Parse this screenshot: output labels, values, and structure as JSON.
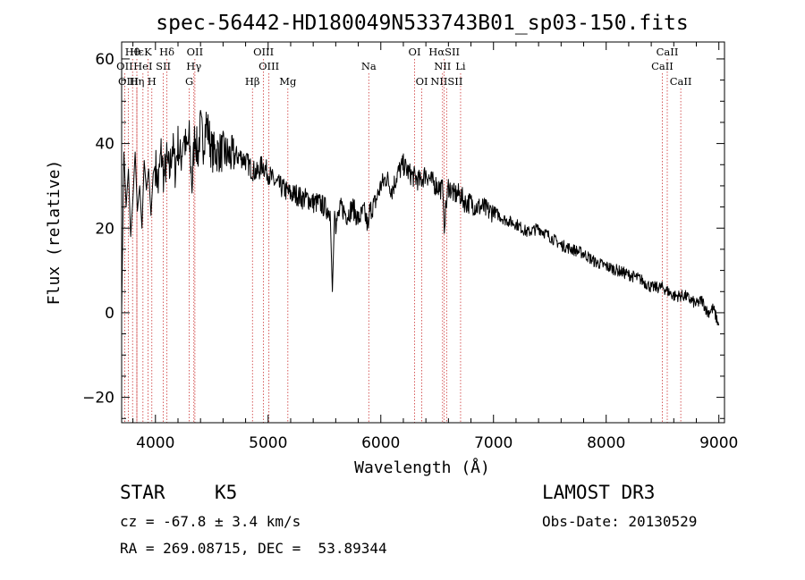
{
  "chart_data": {
    "type": "line",
    "title": "spec-56442-HD180049N533743B01_sp03-150.fits",
    "xlabel": "Wavelength (Å)",
    "ylabel": "Flux (relative)",
    "xlim": [
      3700,
      9050
    ],
    "ylim": [
      -26,
      64
    ],
    "xticks": [
      4000,
      5000,
      6000,
      7000,
      8000,
      9000
    ],
    "yticks": [
      -20,
      0,
      20,
      40,
      60
    ],
    "series": [
      {
        "name": "spectrum",
        "x": [
          3700,
          3720,
          3740,
          3760,
          3780,
          3800,
          3820,
          3840,
          3860,
          3880,
          3900,
          3920,
          3940,
          3960,
          3980,
          4000,
          4025,
          4050,
          4075,
          4100,
          4125,
          4150,
          4175,
          4200,
          4225,
          4250,
          4275,
          4300,
          4325,
          4350,
          4375,
          4400,
          4425,
          4450,
          4475,
          4500,
          4550,
          4600,
          4650,
          4700,
          4750,
          4800,
          4850,
          4900,
          4950,
          5000,
          5050,
          5100,
          5150,
          5200,
          5250,
          5300,
          5350,
          5400,
          5450,
          5500,
          5550,
          5570,
          5590,
          5600,
          5650,
          5700,
          5750,
          5800,
          5850,
          5890,
          5900,
          5950,
          6000,
          6050,
          6100,
          6150,
          6200,
          6250,
          6300,
          6350,
          6400,
          6450,
          6500,
          6550,
          6563,
          6600,
          6650,
          6700,
          6750,
          6800,
          6850,
          6900,
          6950,
          7000,
          7100,
          7200,
          7300,
          7400,
          7500,
          7600,
          7700,
          7800,
          7900,
          8000,
          8100,
          8200,
          8300,
          8400,
          8500,
          8600,
          8700,
          8800,
          8850,
          8900,
          8950,
          9000
        ],
        "y": [
          0,
          38,
          25,
          34,
          18,
          27,
          38,
          24,
          30,
          20,
          36,
          29,
          34,
          23,
          33,
          35,
          30,
          38,
          32,
          36,
          33,
          40,
          34,
          40,
          36,
          42,
          38,
          41,
          30,
          43,
          37,
          44,
          40,
          45,
          42,
          38,
          38,
          38,
          37,
          37,
          37,
          36,
          34,
          33,
          35,
          33,
          31,
          30,
          29,
          28,
          28,
          27,
          27,
          26,
          26,
          25,
          24,
          5,
          24,
          21,
          25,
          23,
          25,
          22,
          24,
          20,
          24,
          26,
          30,
          32,
          29,
          33,
          35,
          33,
          32,
          31,
          33,
          31,
          30,
          29,
          21,
          30,
          28,
          28,
          26,
          26,
          25,
          25,
          24,
          24,
          22,
          21,
          19,
          20,
          18,
          16,
          15,
          14,
          12,
          11,
          10,
          9,
          8,
          6,
          6,
          4,
          4,
          2,
          3,
          0,
          1,
          -3
        ]
      }
    ],
    "lines_top": [
      {
        "label": "Hθ",
        "x": 3797
      },
      {
        "label": "Hε",
        "x": 3835
      },
      {
        "label": "K",
        "x": 3934
      },
      {
        "label": "Hδ",
        "x": 4102
      },
      {
        "label": "OII",
        "x": 4350
      },
      {
        "label": "OIII",
        "x": 4959
      },
      {
        "label": "OI",
        "x": 6300
      },
      {
        "label": "HαSII",
        "x": 6563
      },
      {
        "label": "CaII",
        "x": 8542
      }
    ],
    "lines_mid": [
      {
        "label": "OII",
        "x": 3727
      },
      {
        "label": "HeI",
        "x": 3889
      },
      {
        "label": "SII",
        "x": 4070
      },
      {
        "label": "Hγ",
        "x": 4341
      },
      {
        "label": "OIII",
        "x": 5007
      },
      {
        "label": "Na",
        "x": 5893
      },
      {
        "label": "NII",
        "x": 6548
      },
      {
        "label": "Li",
        "x": 6708
      },
      {
        "label": "CaII",
        "x": 8498
      }
    ],
    "lines_bot": [
      {
        "label": "OIII",
        "x": 3760
      },
      {
        "label": "Hη",
        "x": 3835
      },
      {
        "label": "H",
        "x": 3968
      },
      {
        "label": "G",
        "x": 4300
      },
      {
        "label": "Hβ",
        "x": 4861
      },
      {
        "label": "Mg",
        "x": 5175
      },
      {
        "label": "OI",
        "x": 6364
      },
      {
        "label": "NIISII",
        "x": 6584
      },
      {
        "label": "CaII",
        "x": 8662
      }
    ],
    "colors": {
      "spectrum": "#000000",
      "line_markers": "#cc3333",
      "axes": "#000000"
    }
  },
  "info": {
    "object_class": "STAR",
    "subclass": "K5",
    "survey": "LAMOST DR3",
    "cz": "cz = -67.8 ± 3.4 km/s",
    "obs_date": "Obs-Date: 20130529",
    "coords": "RA = 269.08715, DEC =  53.89344"
  }
}
